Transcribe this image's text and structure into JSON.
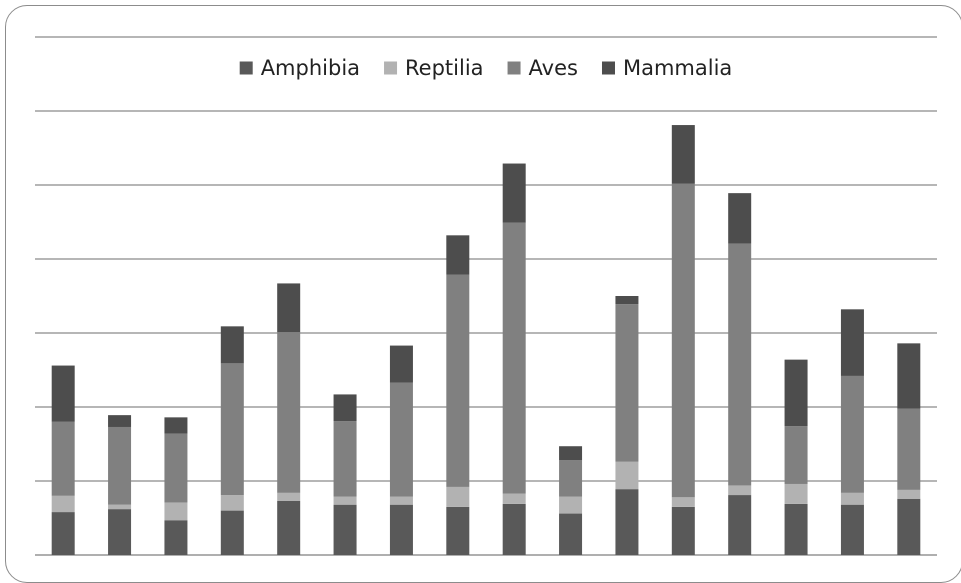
{
  "chart_data": {
    "type": "bar",
    "stacked": true,
    "categories": [
      "",
      "",
      "",
      "",
      "",
      "",
      "",
      "",
      "",
      "",
      "",
      "",
      "",
      "",
      "",
      ""
    ],
    "ylim": [
      0,
      7
    ],
    "grid": true,
    "legend_position": "top",
    "series": [
      {
        "name": "Amphibia",
        "color": "#595959",
        "values": [
          0.58,
          0.62,
          0.47,
          0.6,
          0.73,
          0.68,
          0.68,
          0.65,
          0.69,
          0.56,
          0.89,
          0.65,
          0.81,
          0.69,
          0.68,
          0.76
        ]
      },
      {
        "name": "Reptilia",
        "color": "#b2b2b2",
        "values": [
          0.22,
          0.06,
          0.24,
          0.21,
          0.11,
          0.11,
          0.11,
          0.27,
          0.14,
          0.23,
          0.37,
          0.13,
          0.13,
          0.27,
          0.16,
          0.12
        ]
      },
      {
        "name": "Aves",
        "color": "#808080",
        "values": [
          1.0,
          1.05,
          0.93,
          1.78,
          2.17,
          1.02,
          1.54,
          2.87,
          3.66,
          0.49,
          2.13,
          4.24,
          3.27,
          0.78,
          1.58,
          1.1
        ]
      },
      {
        "name": "Mammalia",
        "color": "#4d4d4d",
        "values": [
          0.76,
          0.16,
          0.22,
          0.5,
          0.66,
          0.36,
          0.5,
          0.53,
          0.8,
          0.19,
          0.11,
          0.79,
          0.68,
          0.9,
          0.9,
          0.88
        ]
      }
    ]
  }
}
